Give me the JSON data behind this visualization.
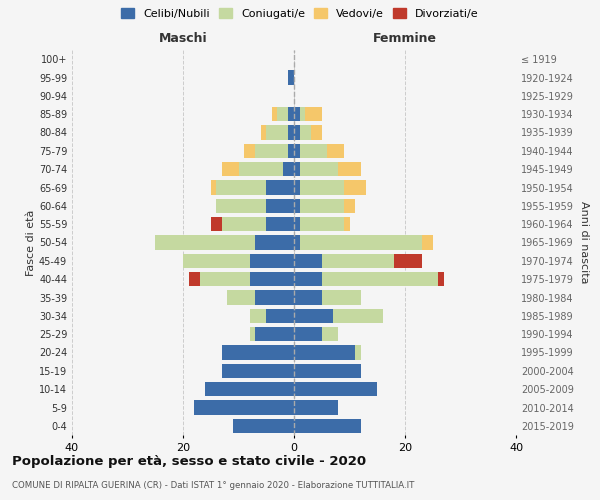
{
  "age_groups": [
    "0-4",
    "5-9",
    "10-14",
    "15-19",
    "20-24",
    "25-29",
    "30-34",
    "35-39",
    "40-44",
    "45-49",
    "50-54",
    "55-59",
    "60-64",
    "65-69",
    "70-74",
    "75-79",
    "80-84",
    "85-89",
    "90-94",
    "95-99",
    "100+"
  ],
  "birth_years": [
    "2015-2019",
    "2010-2014",
    "2005-2009",
    "2000-2004",
    "1995-1999",
    "1990-1994",
    "1985-1989",
    "1980-1984",
    "1975-1979",
    "1970-1974",
    "1965-1969",
    "1960-1964",
    "1955-1959",
    "1950-1954",
    "1945-1949",
    "1940-1944",
    "1935-1939",
    "1930-1934",
    "1925-1929",
    "1920-1924",
    "≤ 1919"
  ],
  "colors": {
    "celibe": "#3c6ca8",
    "coniugato": "#c5d9a0",
    "vedovo": "#f5c76a",
    "divorziato": "#c0392b"
  },
  "maschi": {
    "celibe": [
      11,
      18,
      16,
      13,
      13,
      7,
      5,
      7,
      8,
      8,
      7,
      5,
      5,
      5,
      2,
      1,
      1,
      1,
      0,
      1,
      0
    ],
    "coniugato": [
      0,
      0,
      0,
      0,
      0,
      1,
      3,
      5,
      9,
      12,
      18,
      8,
      9,
      9,
      8,
      6,
      4,
      2,
      0,
      0,
      0
    ],
    "vedovo": [
      0,
      0,
      0,
      0,
      0,
      0,
      0,
      0,
      0,
      0,
      0,
      0,
      0,
      1,
      3,
      2,
      1,
      1,
      0,
      0,
      0
    ],
    "divorziato": [
      0,
      0,
      0,
      0,
      0,
      0,
      0,
      0,
      2,
      0,
      0,
      2,
      0,
      0,
      0,
      0,
      0,
      0,
      0,
      0,
      0
    ]
  },
  "femmine": {
    "nubile": [
      12,
      8,
      15,
      12,
      11,
      5,
      7,
      5,
      5,
      5,
      1,
      1,
      1,
      1,
      1,
      1,
      1,
      1,
      0,
      0,
      0
    ],
    "coniugata": [
      0,
      0,
      0,
      0,
      1,
      3,
      9,
      7,
      21,
      13,
      22,
      8,
      8,
      8,
      7,
      5,
      2,
      1,
      0,
      0,
      0
    ],
    "vedova": [
      0,
      0,
      0,
      0,
      0,
      0,
      0,
      0,
      0,
      0,
      2,
      1,
      2,
      4,
      4,
      3,
      2,
      3,
      0,
      0,
      0
    ],
    "divorziata": [
      0,
      0,
      0,
      0,
      0,
      0,
      0,
      0,
      1,
      5,
      0,
      0,
      0,
      0,
      0,
      0,
      0,
      0,
      0,
      0,
      0
    ]
  },
  "title": "Popolazione per età, sesso e stato civile - 2020",
  "subtitle": "COMUNE DI RIPALTA GUERINA (CR) - Dati ISTAT 1° gennaio 2020 - Elaborazione TUTTITALIA.IT",
  "xlabel_left": "Maschi",
  "xlabel_right": "Femmine",
  "ylabel_left": "Fasce di età",
  "ylabel_right": "Anni di nascita",
  "xlim": 40,
  "legend_labels": [
    "Celibi/Nubili",
    "Coniugati/e",
    "Vedovi/e",
    "Divorziati/e"
  ],
  "bg_color": "#f5f5f5",
  "grid_color": "#cccccc"
}
